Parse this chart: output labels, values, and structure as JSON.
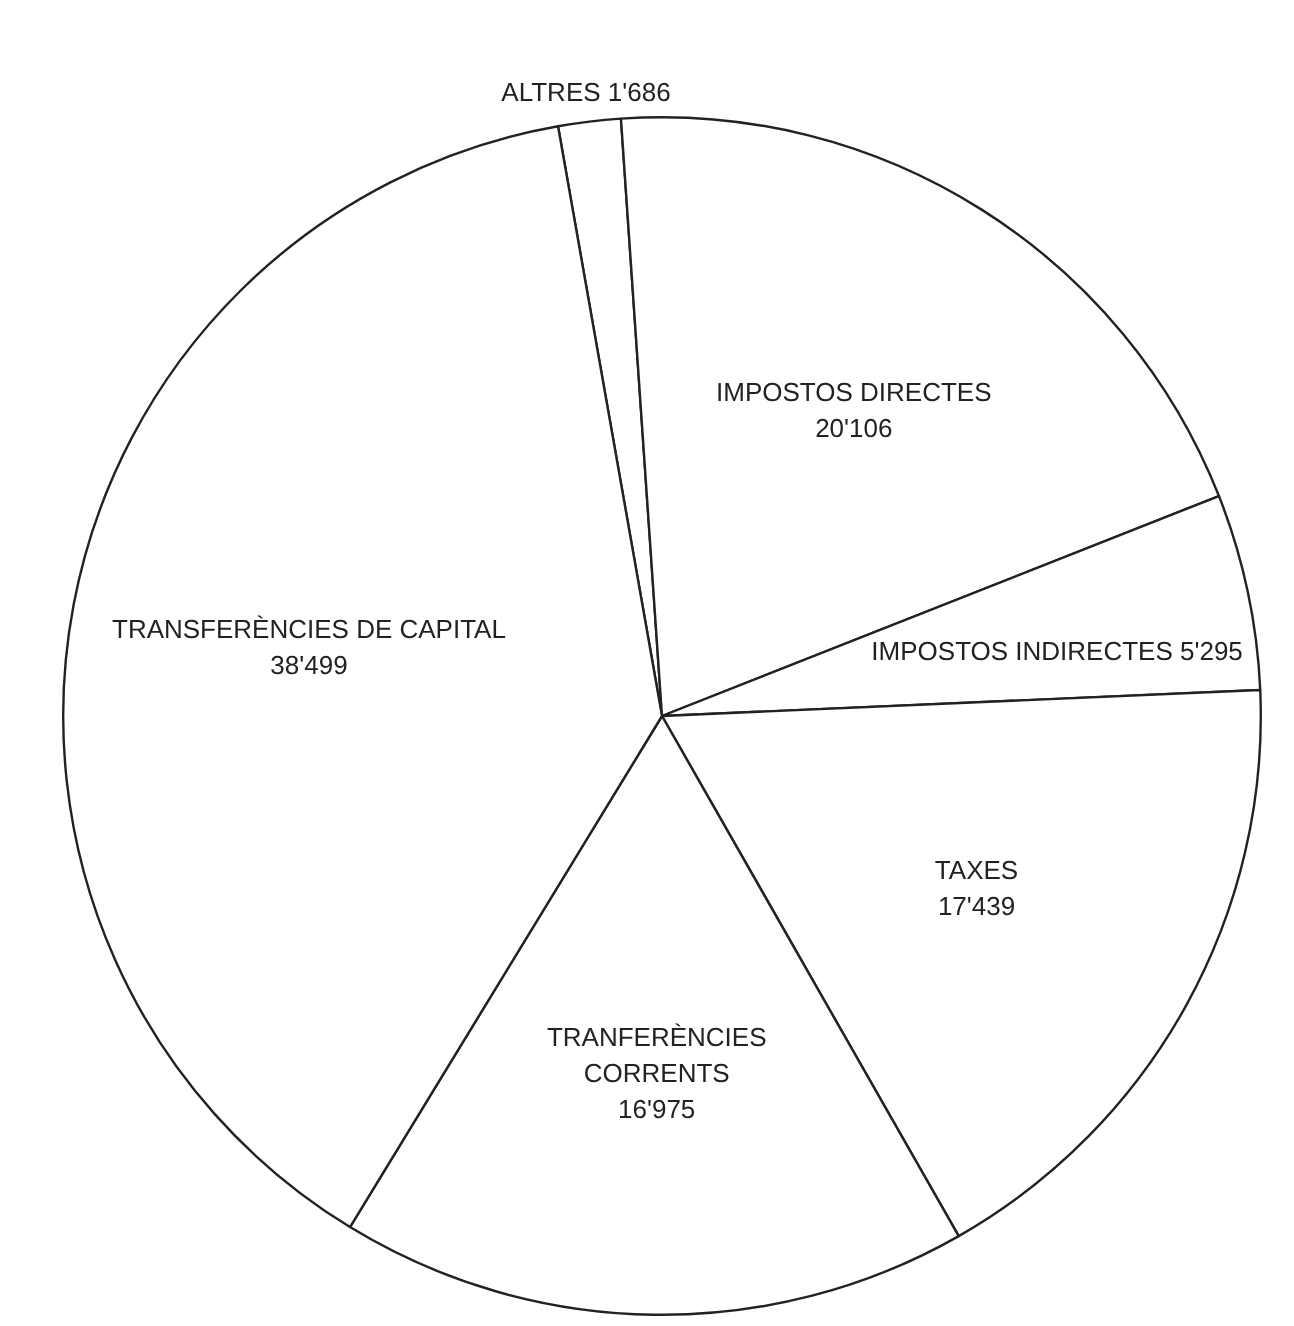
{
  "chart_data": {
    "type": "pie",
    "categories": [
      "ALTRES",
      "IMPOSTOS DIRECTES",
      "IMPOSTOS INDIRECTES",
      "TAXES",
      "TRANFERÈNCIES CORRENTS",
      "TRANSFERÈNCIES DE CAPITAL"
    ],
    "values": [
      1686,
      20106,
      5295,
      17439,
      16975,
      38499
    ],
    "value_labels": [
      "1'686",
      "20'106",
      "5'295",
      "17'439",
      "16'975",
      "38'499"
    ],
    "colors": [
      "#ffffff",
      "#ffffff",
      "#ffffff",
      "#ffffff",
      "#ffffff",
      "#ffffff"
    ],
    "legend": false
  }
}
